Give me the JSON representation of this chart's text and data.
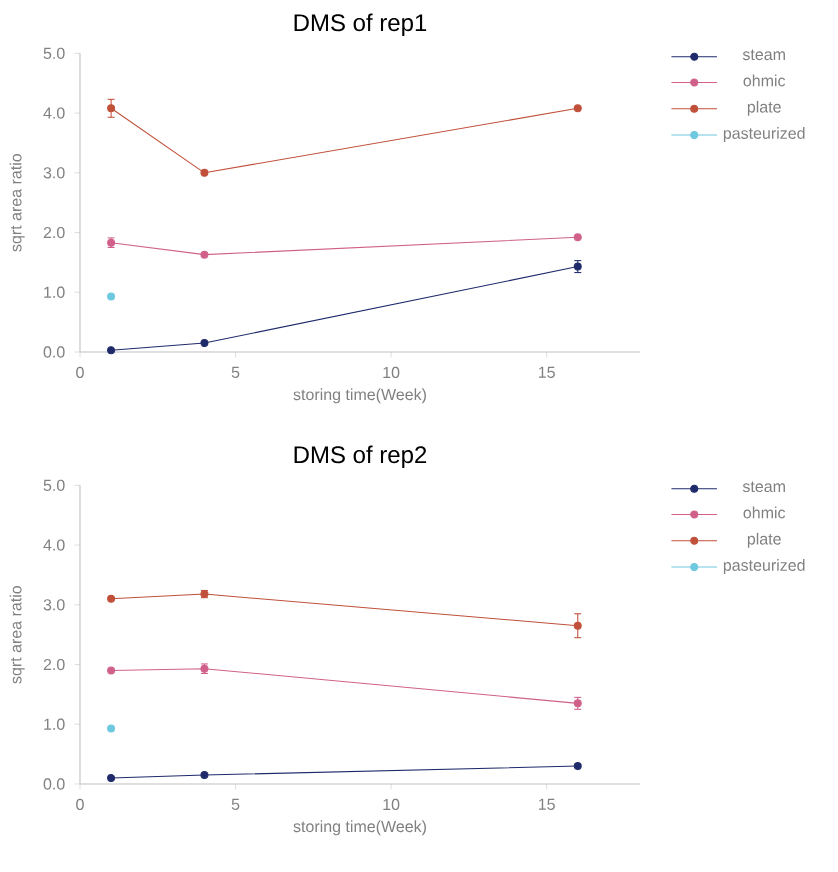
{
  "chart_data": [
    {
      "type": "line",
      "title": "DMS of rep1",
      "xlabel": "storing time(Week)",
      "ylabel": "sqrt area ratio",
      "x": [
        1,
        4,
        16
      ],
      "series": [
        {
          "name": "steam",
          "color": "#1f2a6b",
          "values": [
            0.03,
            0.15,
            1.43
          ],
          "errors": [
            null,
            null,
            0.1
          ]
        },
        {
          "name": "ohmic",
          "color": "#d0608a",
          "values": [
            1.83,
            1.63,
            1.92
          ],
          "errors": [
            0.08,
            null,
            null
          ]
        },
        {
          "name": "plate",
          "color": "#c0503a",
          "values": [
            4.08,
            3.0,
            4.08
          ],
          "errors": [
            0.15,
            null,
            null
          ]
        },
        {
          "name": "pasteurized",
          "color": "#6ec8e0",
          "values": [
            0.93,
            null,
            null
          ]
        }
      ],
      "xlim": [
        0,
        18
      ],
      "ylim": [
        0,
        5
      ],
      "xticks": [
        0,
        5,
        10,
        15
      ],
      "yticks": [
        {
          "value": 0,
          "label": "0.0"
        },
        {
          "value": 1,
          "label": "1.0"
        },
        {
          "value": 2,
          "label": "2.0"
        },
        {
          "value": 3,
          "label": "3.0"
        },
        {
          "value": 4,
          "label": "4.0"
        },
        {
          "value": 5,
          "label": "5.0"
        }
      ],
      "grid": false,
      "legend": "right",
      "marker": "circle",
      "line_style": "solid"
    },
    {
      "type": "line",
      "title": "DMS of rep2",
      "xlabel": "storing time(Week)",
      "ylabel": "sqrt area ratio",
      "x": [
        1,
        4,
        16
      ],
      "series": [
        {
          "name": "steam",
          "color": "#1f2a6b",
          "values": [
            0.1,
            0.15,
            0.3
          ]
        },
        {
          "name": "ohmic",
          "color": "#d0608a",
          "values": [
            1.9,
            1.93,
            1.35
          ],
          "errors": [
            null,
            0.08,
            0.1
          ]
        },
        {
          "name": "plate",
          "color": "#c0503a",
          "values": [
            3.1,
            3.18,
            2.65
          ],
          "errors": [
            null,
            0.06,
            0.2
          ]
        },
        {
          "name": "pasteurized",
          "color": "#6ec8e0",
          "values": [
            0.93,
            null,
            null
          ]
        }
      ],
      "xlim": [
        0,
        18
      ],
      "ylim": [
        0,
        5
      ],
      "xticks": [
        0,
        5,
        10,
        15
      ],
      "yticks": [
        {
          "value": 0,
          "label": "0.0"
        },
        {
          "value": 1,
          "label": "1.0"
        },
        {
          "value": 2,
          "label": "2.0"
        },
        {
          "value": 3,
          "label": "3.0"
        },
        {
          "value": 4,
          "label": "4.0"
        },
        {
          "value": 5,
          "label": "5.0"
        }
      ],
      "grid": false,
      "legend": "right",
      "marker": "circle",
      "line_style": "solid"
    }
  ]
}
